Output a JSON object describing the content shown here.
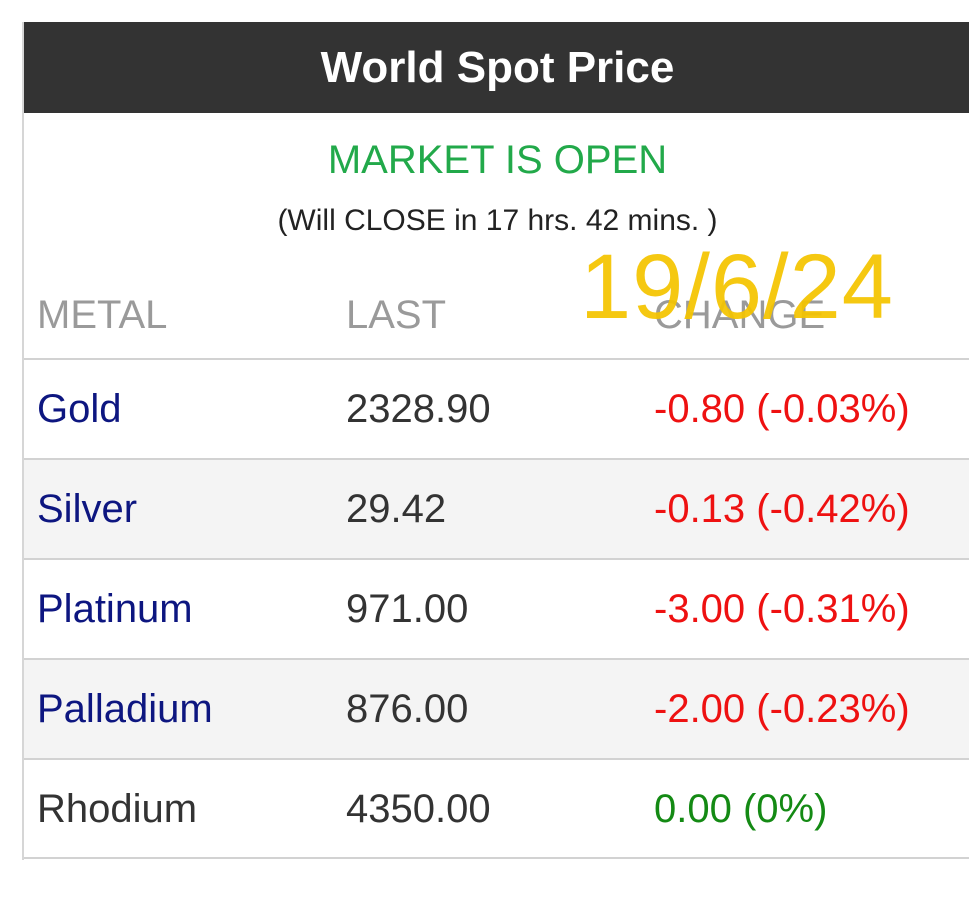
{
  "header": {
    "title": "World Spot Price"
  },
  "market": {
    "status": "MARKET IS OPEN",
    "countdown": "(Will CLOSE in 17 hrs. 42 mins. )"
  },
  "table": {
    "columns": [
      "METAL",
      "LAST",
      "CHANGE"
    ],
    "rows": [
      {
        "metal": "Gold",
        "last": "2328.90",
        "change": "-0.80 (-0.03%)"
      },
      {
        "metal": "Silver",
        "last": "29.42",
        "change": "-0.13 (-0.42%)"
      },
      {
        "metal": "Platinum",
        "last": "971.00",
        "change": "-3.00 (-0.31%)"
      },
      {
        "metal": "Palladium",
        "last": "876.00",
        "change": "-2.00 (-0.23%)"
      },
      {
        "metal": "Rhodium",
        "last": "4350.00",
        "change": "0.00 (0%)"
      }
    ]
  },
  "overlay": {
    "date_stamp": "19/6/24"
  },
  "colors": {
    "header_bg": "#333333",
    "market_open": "#22a94a",
    "metal_link": "#0d1680",
    "negative": "#ee1111",
    "neutral": "#148a14",
    "stamp": "#f5c400"
  }
}
